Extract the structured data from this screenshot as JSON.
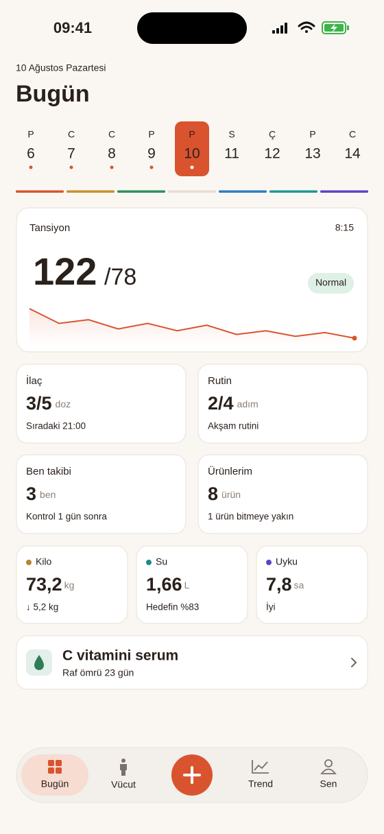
{
  "status_bar": {
    "time": "09:41"
  },
  "header": {
    "date": "10 Ağustos Pazartesi",
    "title": "Bugün"
  },
  "week": {
    "days": [
      {
        "letter": "P",
        "number": "6"
      },
      {
        "letter": "C",
        "number": "7"
      },
      {
        "letter": "C",
        "number": "8"
      },
      {
        "letter": "P",
        "number": "9"
      },
      {
        "letter": "P",
        "number": "10"
      },
      {
        "letter": "S",
        "number": "11"
      },
      {
        "letter": "Ç",
        "number": "12"
      },
      {
        "letter": "P",
        "number": "13"
      },
      {
        "letter": "C",
        "number": "14"
      }
    ],
    "stripe_colors": [
      "#d9542e",
      "#c8902a",
      "#2f8f5e",
      "#e6ddd3",
      "#2f7fc1",
      "#1f9a96",
      "#5a45c6"
    ]
  },
  "blood_pressure": {
    "title": "Tansiyon",
    "time": "8:15",
    "systolic": "122",
    "diastolic": "/78",
    "status": "Normal",
    "trend": [
      130,
      126,
      127,
      124.5,
      126,
      124,
      125.5,
      123,
      124,
      122.5,
      123.5,
      122
    ],
    "color": "#d9542e"
  },
  "cards": [
    {
      "title": "İlaç",
      "value": "3/5",
      "unit": "doz",
      "note": "Sıradaki 21:00"
    },
    {
      "title": "Rutin",
      "value": "2/4",
      "unit": "adım",
      "note": "Akşam rutini"
    },
    {
      "title": "Ben takibi",
      "value": "3",
      "unit": "ben",
      "note": "Kontrol 1 gün sonra"
    },
    {
      "title": "Ürünlerim",
      "value": "8",
      "unit": "ürün",
      "note": "1 ürün bitmeye yakın"
    }
  ],
  "metrics": [
    {
      "label": "Kilo",
      "value": "73,2",
      "unit": "kg",
      "note": "↓ 5,2 kg",
      "color": "#b5862a"
    },
    {
      "label": "Su",
      "value": "1,66",
      "unit": "L",
      "note": "Hedefin %83",
      "color": "#1e8a8a"
    },
    {
      "label": "Uyku",
      "value": "7,8",
      "unit": "sa",
      "note": "İyi",
      "color": "#5a45c6"
    }
  ],
  "product": {
    "name": "C vitamini serum",
    "shelf_life": "Raf ömrü 23 gün"
  },
  "nav": [
    {
      "label": "Bugün"
    },
    {
      "label": "Vücut"
    },
    {
      "label": "Trend"
    },
    {
      "label": "Sen"
    }
  ]
}
